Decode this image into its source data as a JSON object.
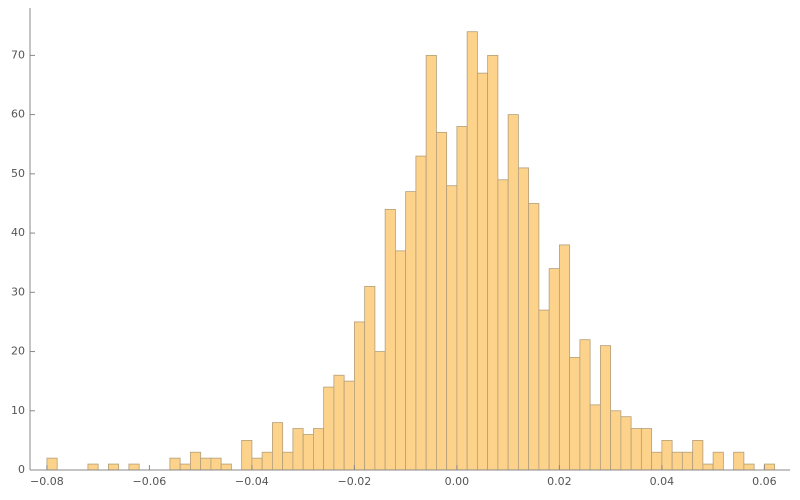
{
  "chart_data": {
    "type": "histogram",
    "bins": [
      -0.08,
      -0.078,
      -0.076,
      -0.074,
      -0.072,
      -0.07,
      -0.068,
      -0.066,
      -0.064,
      -0.062,
      -0.06,
      -0.058,
      -0.056,
      -0.054,
      -0.052,
      -0.05,
      -0.048,
      -0.046,
      -0.044,
      -0.042,
      -0.04,
      -0.038,
      -0.036,
      -0.034,
      -0.032,
      -0.03,
      -0.028,
      -0.026,
      -0.024,
      -0.022,
      -0.02,
      -0.018,
      -0.016,
      -0.014,
      -0.012,
      -0.01,
      -0.008,
      -0.006,
      -0.004,
      -0.002,
      0.0,
      0.002,
      0.004,
      0.006,
      0.008,
      0.01,
      0.012,
      0.014,
      0.016,
      0.018,
      0.02,
      0.022,
      0.024,
      0.026,
      0.028,
      0.03,
      0.032,
      0.034,
      0.036,
      0.038,
      0.04,
      0.042,
      0.044,
      0.046,
      0.048,
      0.05,
      0.052,
      0.054,
      0.056,
      0.058,
      0.06,
      0.062
    ],
    "values": [
      2,
      0,
      0,
      0,
      1,
      0,
      1,
      0,
      1,
      0,
      0,
      0,
      2,
      1,
      3,
      2,
      2,
      1,
      0,
      5,
      2,
      3,
      8,
      3,
      7,
      6,
      7,
      14,
      16,
      15,
      25,
      31,
      20,
      44,
      37,
      47,
      53,
      70,
      57,
      48,
      58,
      74,
      67,
      70,
      49,
      60,
      51,
      45,
      27,
      34,
      38,
      19,
      22,
      11,
      21,
      10,
      9,
      7,
      7,
      3,
      5,
      3,
      3,
      5,
      1,
      3,
      0,
      3,
      1,
      0,
      1
    ],
    "color": "#fdd28a",
    "edge_color": "#b39f7b",
    "xlim": [
      -0.0833,
      0.065
    ],
    "ylim": [
      0,
      78
    ],
    "xticks": [
      {
        "value": -0.08,
        "label": "−0.08"
      },
      {
        "value": -0.06,
        "label": "−0.06"
      },
      {
        "value": -0.04,
        "label": "−0.04"
      },
      {
        "value": -0.02,
        "label": "−0.02"
      },
      {
        "value": 0,
        "label": "0.00"
      },
      {
        "value": 0.02,
        "label": "0.02"
      },
      {
        "value": 0.04,
        "label": "0.04"
      },
      {
        "value": 0.06,
        "label": "0.06"
      }
    ],
    "yticks": [
      0,
      10,
      20,
      30,
      40,
      50,
      60,
      70
    ]
  }
}
